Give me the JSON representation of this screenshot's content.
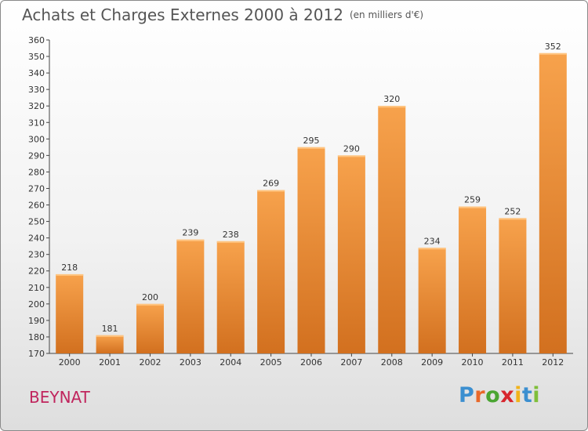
{
  "chart_data": {
    "type": "bar",
    "title": "Achats et Charges Externes 2000 à 2012",
    "subtitle": "(en milliers d'€)",
    "categories": [
      "2000",
      "2001",
      "2002",
      "2003",
      "2004",
      "2005",
      "2006",
      "2007",
      "2008",
      "2009",
      "2010",
      "2011",
      "2012"
    ],
    "values": [
      218,
      181,
      200,
      239,
      238,
      269,
      295,
      290,
      320,
      234,
      259,
      252,
      352
    ],
    "ylim": [
      170,
      360
    ],
    "yticks": [
      170,
      180,
      190,
      200,
      210,
      220,
      230,
      240,
      250,
      260,
      270,
      280,
      290,
      300,
      310,
      320,
      330,
      340,
      350,
      360
    ],
    "grid": false,
    "bar_color_top": "#f7a24c",
    "bar_color_bottom": "#d2701f"
  },
  "location": "BEYNAT",
  "brand": {
    "letters": [
      "P",
      "r",
      "o",
      "x",
      "i",
      "t",
      "i"
    ],
    "colors": [
      "#3b8fd0",
      "#e8682a",
      "#4aa532",
      "#d7252d",
      "#f2b31a",
      "#3b8fd0",
      "#7fbf3a"
    ]
  }
}
